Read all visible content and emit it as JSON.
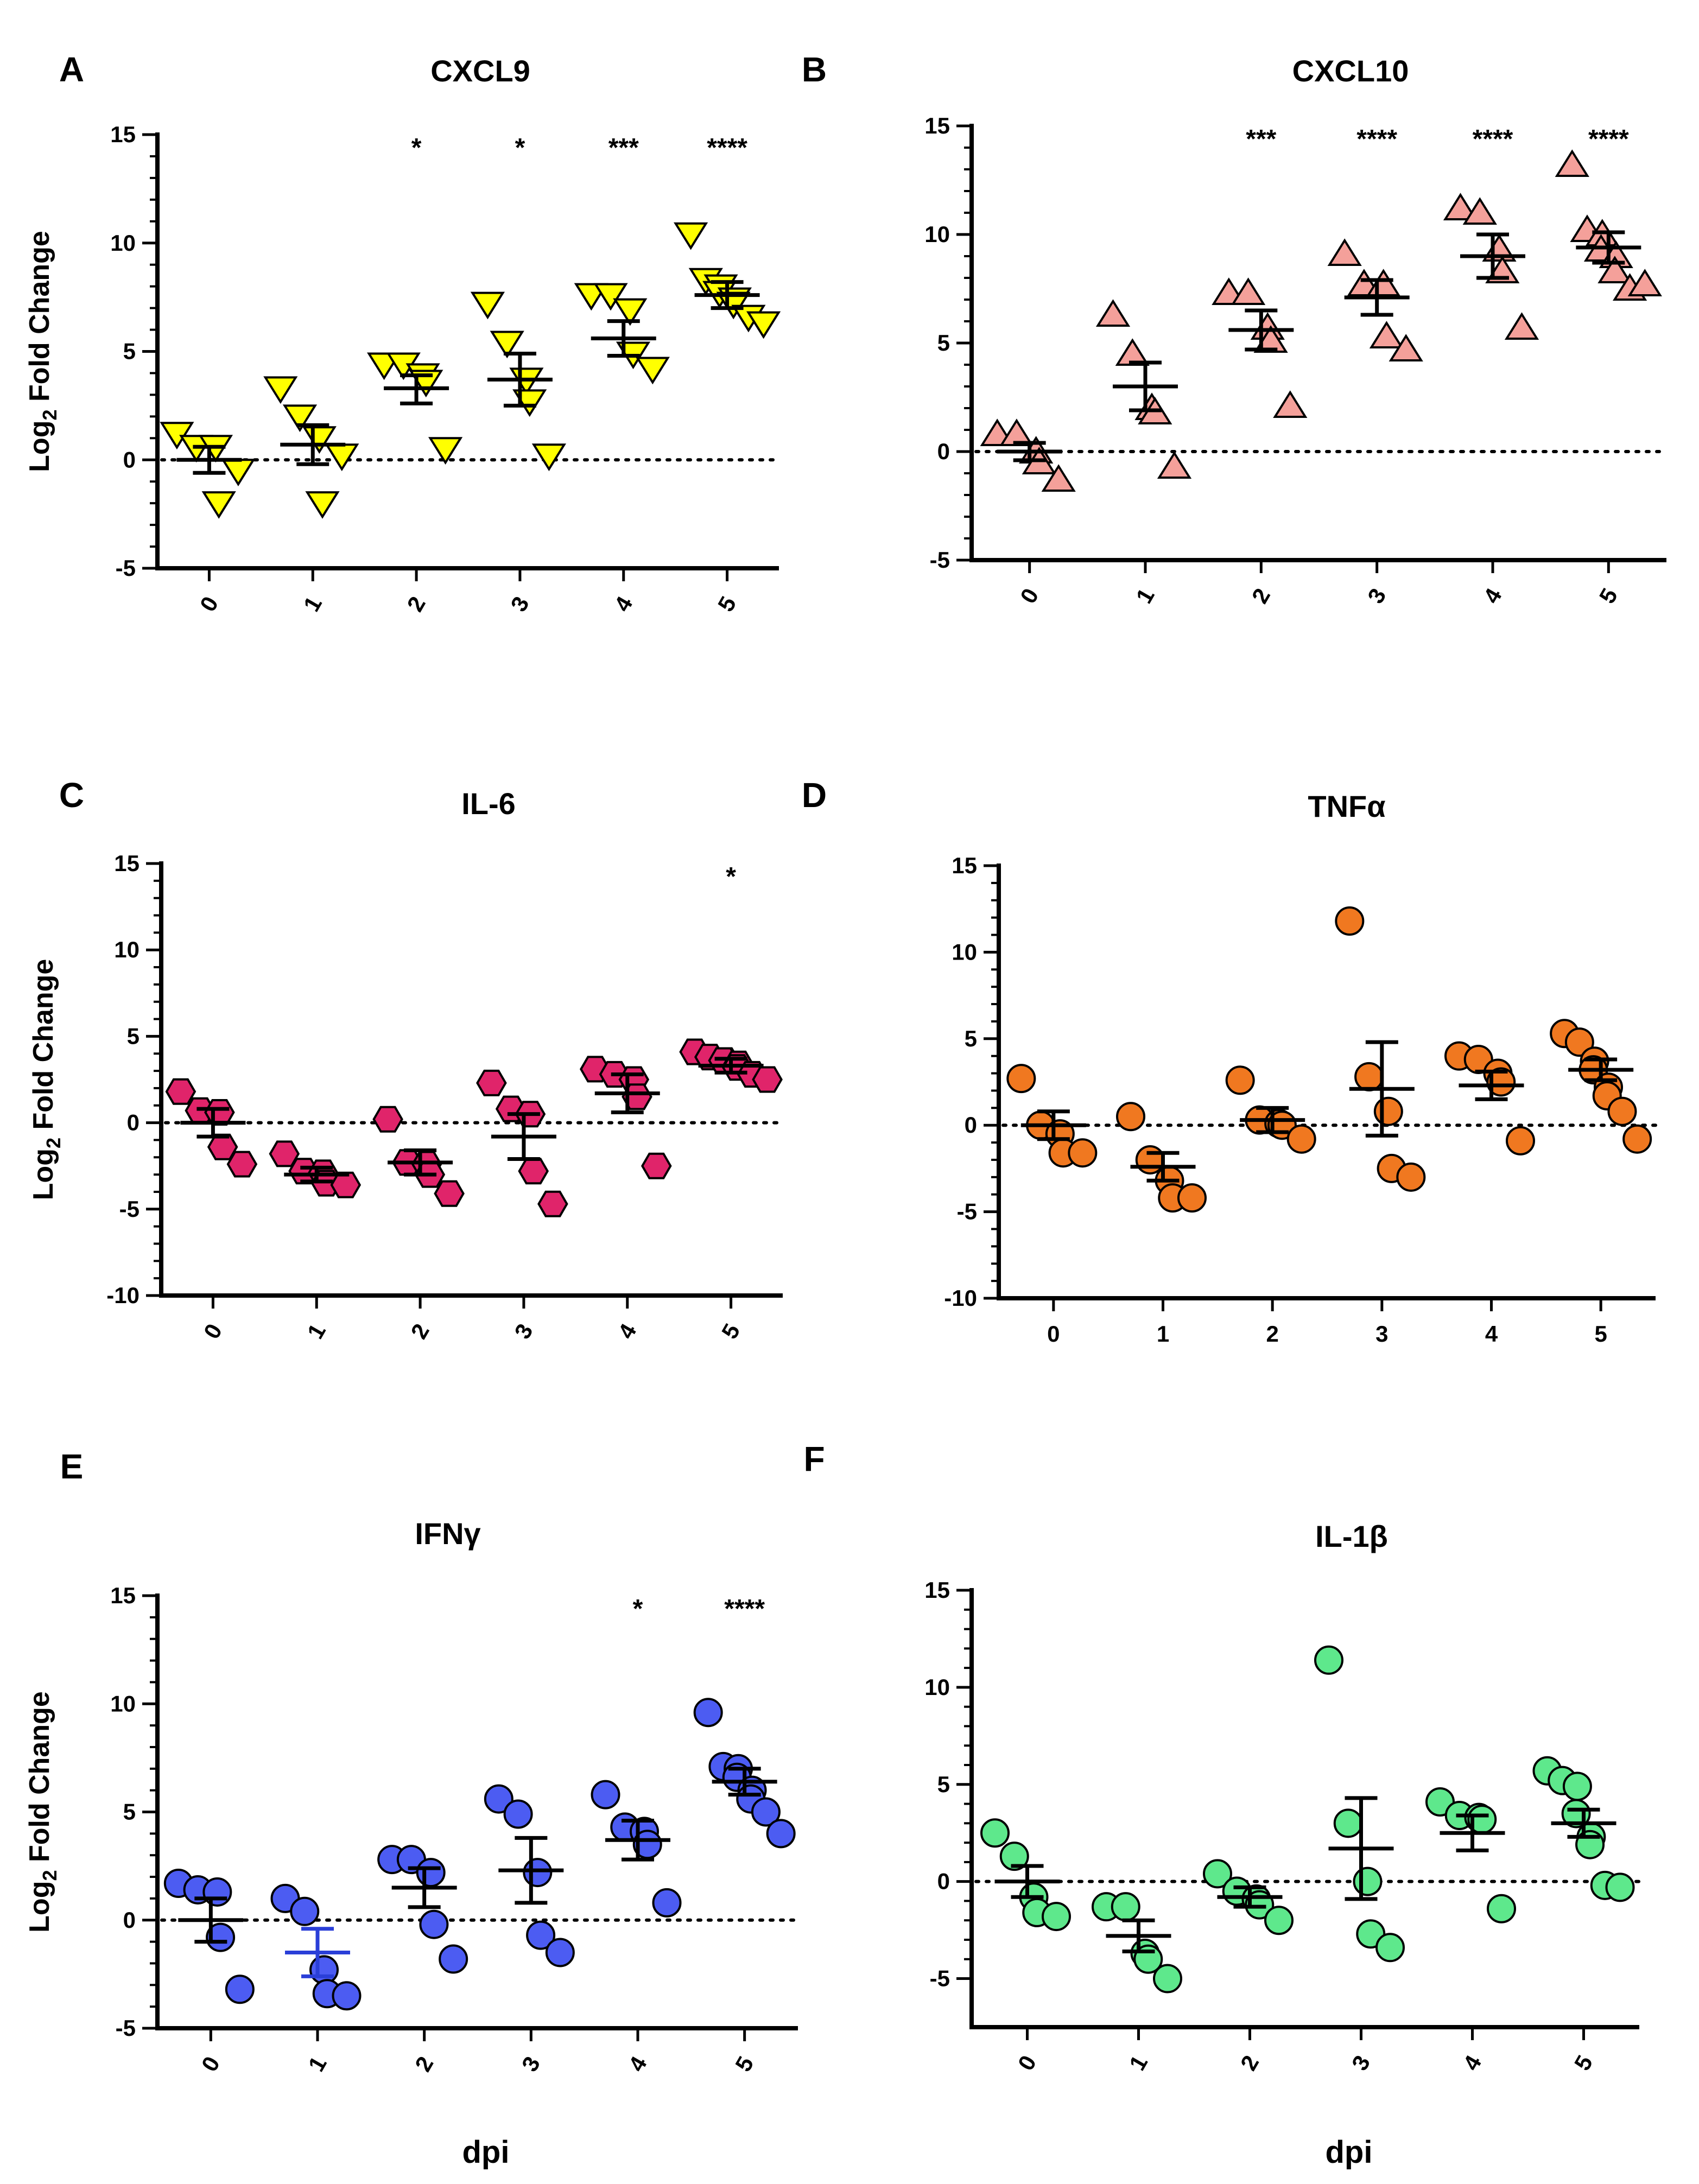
{
  "figure": {
    "ylabel_main": "Log",
    "ylabel_sub": "2",
    "ylabel_rest": " Fold Change",
    "xlabel": "dpi"
  },
  "chart_data": [
    {
      "panel": "A",
      "title": "CXCL9",
      "type": "scatter",
      "marker": "triangle-down",
      "color": "#FFFF00",
      "bar_color": "#000000",
      "categories": [
        "0",
        "1",
        "2",
        "3",
        "4",
        "5"
      ],
      "ylim": [
        -5,
        15
      ],
      "yticks": [
        -5,
        0,
        5,
        10,
        15
      ],
      "ylabel": true,
      "xlabel": false,
      "rotate_ticks": true,
      "points": [
        [
          1.2,
          0.6,
          0.6,
          -2.0,
          -0.5
        ],
        [
          3.3,
          2.0,
          1.0,
          -2.0,
          0.2
        ],
        [
          4.4,
          4.4,
          3.9,
          3.6,
          0.5
        ],
        [
          7.2,
          5.4,
          3.7,
          2.7,
          0.2
        ],
        [
          7.6,
          7.6,
          6.9,
          4.9,
          4.2
        ],
        [
          10.4,
          8.3,
          8.0,
          7.7,
          7.4,
          7.2,
          6.6,
          6.3
        ]
      ],
      "means": [
        0.0,
        0.7,
        3.3,
        3.7,
        5.6,
        7.6
      ],
      "sem_low": [
        -0.6,
        -0.2,
        2.6,
        2.5,
        4.8,
        7.0
      ],
      "sem_high": [
        0.6,
        1.6,
        3.9,
        4.9,
        6.4,
        8.2
      ],
      "annotations": [
        "",
        "",
        "*",
        "*",
        "***",
        "****"
      ]
    },
    {
      "panel": "B",
      "title": "CXCL10",
      "type": "scatter",
      "marker": "triangle-up",
      "color": "#F4A09A",
      "bar_color": "#000000",
      "categories": [
        "0",
        "1",
        "2",
        "3",
        "4",
        "5"
      ],
      "ylim": [
        -5,
        15
      ],
      "yticks": [
        -5,
        0,
        5,
        10,
        15
      ],
      "ylabel": false,
      "xlabel": false,
      "rotate_ticks": true,
      "points": [
        [
          0.8,
          0.8,
          0.0,
          -0.5,
          -1.3
        ],
        [
          6.3,
          4.5,
          2.0,
          1.8,
          -0.7
        ],
        [
          7.3,
          7.3,
          5.7,
          5.1,
          2.1
        ],
        [
          9.1,
          7.7,
          7.7,
          5.3,
          4.7
        ],
        [
          11.2,
          11.0,
          9.3,
          8.3,
          5.7
        ],
        [
          13.2,
          10.2,
          10.0,
          9.3,
          9.0,
          8.3,
          7.5,
          7.7
        ]
      ],
      "means": [
        0.0,
        3.0,
        5.6,
        7.1,
        9.0,
        9.4
      ],
      "sem_low": [
        -0.4,
        1.9,
        4.7,
        6.3,
        8.0,
        8.7
      ],
      "sem_high": [
        0.4,
        4.1,
        6.5,
        7.9,
        10.0,
        10.1
      ],
      "annotations": [
        "",
        "",
        "***",
        "****",
        "****",
        "****"
      ]
    },
    {
      "panel": "C",
      "title": "IL-6",
      "type": "scatter",
      "marker": "hexagon",
      "color": "#E0246A",
      "bar_color": "#000000",
      "categories": [
        "0",
        "1",
        "2",
        "3",
        "4",
        "5"
      ],
      "ylim": [
        -10,
        15
      ],
      "yticks": [
        -10,
        -5,
        0,
        5,
        10,
        15
      ],
      "ylabel": true,
      "xlabel": false,
      "rotate_ticks": true,
      "points": [
        [
          1.8,
          0.7,
          0.6,
          -1.4,
          -2.4
        ],
        [
          -1.8,
          -2.8,
          -2.9,
          -3.5,
          -3.6
        ],
        [
          0.2,
          -2.3,
          -2.4,
          -3.0,
          -4.1
        ],
        [
          2.3,
          0.8,
          0.5,
          -2.8,
          -4.7
        ],
        [
          3.1,
          2.8,
          2.5,
          1.5,
          -2.5
        ],
        [
          4.1,
          3.8,
          3.6,
          3.6,
          3.4,
          3.2,
          2.8,
          2.5
        ]
      ],
      "means": [
        0.0,
        -3.0,
        -2.3,
        -0.8,
        1.7,
        3.3
      ],
      "sem_low": [
        -0.8,
        -3.4,
        -3.0,
        -2.1,
        0.6,
        2.9
      ],
      "sem_high": [
        0.8,
        -2.6,
        -1.6,
        0.5,
        2.8,
        3.7
      ],
      "annotations": [
        "",
        "",
        "",
        "",
        "",
        "*"
      ]
    },
    {
      "panel": "D",
      "title": "TNFα",
      "type": "scatter",
      "marker": "circle",
      "color": "#F07820",
      "bar_color": "#000000",
      "categories": [
        "0",
        "1",
        "2",
        "3",
        "4",
        "5"
      ],
      "ylim": [
        -10,
        15
      ],
      "yticks": [
        -10,
        -5,
        0,
        5,
        10,
        15
      ],
      "ylabel": false,
      "xlabel": false,
      "rotate_ticks": false,
      "points": [
        [
          2.7,
          0.0,
          -0.5,
          -1.6,
          -1.6
        ],
        [
          0.5,
          -2.0,
          -3.2,
          -4.2,
          -4.2
        ],
        [
          2.6,
          0.3,
          0.1,
          0.0,
          -0.8
        ],
        [
          11.8,
          2.8,
          0.8,
          -2.5,
          -3.0
        ],
        [
          4.0,
          3.8,
          3.0,
          2.5,
          -0.9
        ],
        [
          5.3,
          4.8,
          3.7,
          3.2,
          2.2,
          1.7,
          0.8,
          -0.8
        ]
      ],
      "means": [
        0.0,
        -2.4,
        0.3,
        2.1,
        2.3,
        3.2
      ],
      "sem_low": [
        -0.8,
        -3.2,
        -0.4,
        -0.6,
        1.5,
        2.6
      ],
      "sem_high": [
        0.8,
        -1.6,
        1.0,
        4.8,
        3.1,
        3.8
      ],
      "annotations": [
        "",
        "",
        "",
        "",
        "",
        ""
      ]
    },
    {
      "panel": "E",
      "title": "IFNγ",
      "type": "scatter",
      "marker": "circle",
      "color": "#4C5CF2",
      "bar_color": "#000000",
      "mean_bar_colors": [
        "#000000",
        "#2A3FD8",
        "#000000",
        "#000000",
        "#000000",
        "#000000"
      ],
      "categories": [
        "0",
        "1",
        "2",
        "3",
        "4",
        "5"
      ],
      "ylim": [
        -5,
        15
      ],
      "yticks": [
        -5,
        0,
        5,
        10,
        15
      ],
      "ylabel": true,
      "xlabel": true,
      "rotate_ticks": true,
      "points": [
        [
          1.7,
          1.4,
          1.3,
          -0.8,
          -3.2
        ],
        [
          1.0,
          0.4,
          -2.3,
          -3.4,
          -3.5
        ],
        [
          2.8,
          2.8,
          2.2,
          -0.2,
          -1.8
        ],
        [
          5.6,
          4.9,
          2.2,
          -0.7,
          -1.5
        ],
        [
          5.8,
          4.3,
          4.1,
          3.5,
          0.8
        ],
        [
          9.6,
          7.1,
          7.0,
          6.6,
          6.0,
          5.6,
          5.0,
          4.0
        ]
      ],
      "means": [
        0.0,
        -1.5,
        1.5,
        2.3,
        3.7,
        6.4
      ],
      "sem_low": [
        -1.0,
        -2.6,
        0.6,
        0.8,
        2.8,
        5.8
      ],
      "sem_high": [
        1.0,
        -0.4,
        2.4,
        3.8,
        4.6,
        7.0
      ],
      "annotations": [
        "",
        "",
        "",
        "",
        "*",
        "****"
      ]
    },
    {
      "panel": "F",
      "title": "IL-1β",
      "type": "scatter",
      "marker": "circle",
      "color": "#5EE88C",
      "bar_color": "#000000",
      "categories": [
        "0",
        "1",
        "2",
        "3",
        "4",
        "5"
      ],
      "ylim": [
        -7.5,
        15
      ],
      "yticks": [
        -5,
        0,
        5,
        10,
        15
      ],
      "ylabel": false,
      "xlabel": true,
      "rotate_ticks": true,
      "points": [
        [
          2.5,
          1.3,
          -0.8,
          -1.6,
          -1.8
        ],
        [
          -1.3,
          -1.3,
          -3.7,
          -4.0,
          -5.0
        ],
        [
          0.4,
          -0.5,
          -0.9,
          -1.2,
          -2.0
        ],
        [
          11.4,
          3.0,
          0.0,
          -2.7,
          -3.4
        ],
        [
          4.1,
          3.4,
          3.3,
          3.2,
          -1.4
        ],
        [
          5.7,
          5.2,
          4.9,
          3.5,
          2.3,
          1.9,
          -0.2,
          -0.3
        ]
      ],
      "means": [
        0.0,
        -2.8,
        -0.8,
        1.7,
        2.5,
        3.0
      ],
      "sem_low": [
        -0.8,
        -3.6,
        -1.3,
        -0.9,
        1.6,
        2.3
      ],
      "sem_high": [
        0.8,
        -2.0,
        -0.3,
        4.3,
        3.4,
        3.7
      ],
      "annotations": [
        "",
        "",
        "",
        "",
        "",
        ""
      ]
    }
  ]
}
